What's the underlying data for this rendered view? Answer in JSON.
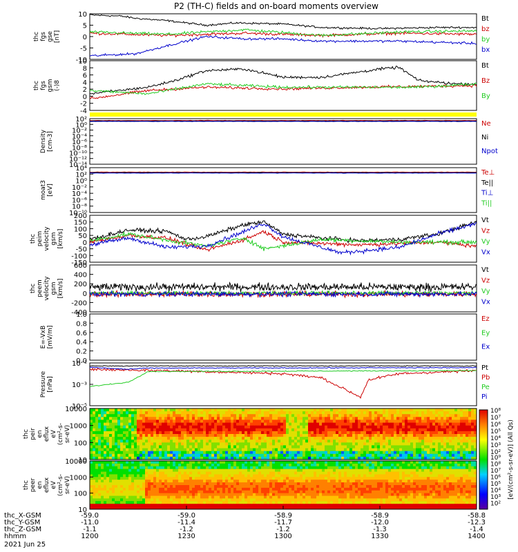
{
  "title": "P2 (TH-C) fields and on-board moments overview",
  "colors": {
    "black": "#000000",
    "red": "#cc0000",
    "green": "#22cc22",
    "blue": "#0000cc",
    "yellow": "#ffff00"
  },
  "chart_data": [
    {
      "type": "line",
      "id": "fgs",
      "ylabel": [
        "thc",
        "fgs",
        "gse",
        "[nT]"
      ],
      "ylim": [
        -10,
        10
      ],
      "ticks": [
        "10",
        "5",
        "0",
        "-5",
        "-10"
      ],
      "legend": [
        {
          "name": "Bt",
          "color": "black"
        },
        {
          "name": "bz",
          "color": "red"
        },
        {
          "name": "by",
          "color": "green"
        },
        {
          "name": "bx",
          "color": "blue"
        }
      ]
    },
    {
      "type": "line",
      "id": "fgsgsm",
      "ylabel": [
        "thc",
        "fgs",
        "gsm",
        "(-)8"
      ],
      "ylim": [
        -5,
        10
      ],
      "ticks": [
        "10",
        "8",
        "6",
        "4",
        "2",
        "0",
        "-2",
        "-4"
      ],
      "legend": [
        {
          "name": "Bt",
          "color": "black"
        },
        {
          "name": "Bz",
          "color": "red"
        },
        {
          "name": "By",
          "color": "green"
        }
      ]
    },
    {
      "type": "line",
      "id": "density",
      "ylabel": [
        "Density",
        "[cm-3]"
      ],
      "ylim": [
        1e-14,
        100
      ],
      "log": true,
      "ticks": [
        "10²",
        "10⁰",
        "10⁻²",
        "10⁻⁴",
        "10⁻⁶",
        "10⁻⁸",
        "10⁻¹⁰",
        "10⁻¹²",
        "10⁻¹⁴"
      ],
      "legend": [
        {
          "name": "Ne",
          "color": "red"
        },
        {
          "name": "Ni",
          "color": "black"
        },
        {
          "name": "Npot",
          "color": "blue"
        }
      ]
    },
    {
      "type": "line",
      "id": "temp",
      "ylabel": [
        "moat3",
        "[eV]"
      ],
      "ylim": [
        1e-10,
        10000
      ],
      "log": true,
      "ticks": [
        "10⁴",
        "10²",
        "10⁰",
        "10⁻²",
        "10⁻⁴",
        "10⁻⁶",
        "10⁻⁸",
        "10⁻¹⁰"
      ],
      "legend": [
        {
          "name": "Te⊥",
          "color": "red"
        },
        {
          "name": "Te||",
          "color": "black"
        },
        {
          "name": "Ti⊥",
          "color": "blue"
        },
        {
          "name": "Ti||",
          "color": "green"
        }
      ]
    },
    {
      "type": "line",
      "id": "peim",
      "ylabel": [
        "thc",
        "peim",
        "velocity",
        "gsm",
        "[km/s]"
      ],
      "ylim": [
        -150,
        200
      ],
      "ticks": [
        "200",
        "150",
        "100",
        "50",
        "0",
        "-50",
        "-100",
        "-150"
      ],
      "legend": [
        {
          "name": "Vt",
          "color": "black"
        },
        {
          "name": "Vz",
          "color": "red"
        },
        {
          "name": "Vy",
          "color": "green"
        },
        {
          "name": "Vx",
          "color": "blue"
        }
      ]
    },
    {
      "type": "line",
      "id": "peem",
      "ylabel": [
        "thc",
        "peem",
        "velocity",
        "gsm",
        "[km/s]"
      ],
      "ylim": [
        -400,
        600
      ],
      "ticks": [
        "600",
        "400",
        "200",
        "0",
        "-200",
        "-400"
      ],
      "legend": [
        {
          "name": "Vt",
          "color": "black"
        },
        {
          "name": "Vz",
          "color": "red"
        },
        {
          "name": "Vy",
          "color": "green"
        },
        {
          "name": "Vx",
          "color": "blue"
        }
      ]
    },
    {
      "type": "line",
      "id": "efield",
      "ylabel": [
        "E=-VxB",
        "[mV/m]"
      ],
      "ylim": [
        0,
        1
      ],
      "ticks": [
        "1.0",
        "0.8",
        "0.6",
        "0.4",
        "0.2",
        "0.0"
      ],
      "legend": [
        {
          "name": "Ez",
          "color": "red"
        },
        {
          "name": "Ey",
          "color": "green"
        },
        {
          "name": "Ex",
          "color": "blue"
        }
      ]
    },
    {
      "type": "line",
      "id": "pressure",
      "ylabel": [
        "Pressure",
        "[nPa]"
      ],
      "ylim": [
        1e-06,
        0.1
      ],
      "log": true,
      "ticks": [
        "10⁻¹",
        "10⁻³",
        "10⁻⁵"
      ],
      "legend": [
        {
          "name": "Pt",
          "color": "black"
        },
        {
          "name": "Pb",
          "color": "red"
        },
        {
          "name": "Pe",
          "color": "green"
        },
        {
          "name": "Pi",
          "color": "blue"
        }
      ]
    },
    {
      "type": "heatmap",
      "id": "peir",
      "ylabel": [
        "thc",
        "peir",
        "en",
        "eflux",
        "eV",
        "(cm²-s-",
        "sr-eV)"
      ],
      "ticks": [
        "10000",
        "1000",
        "100",
        "10"
      ]
    },
    {
      "type": "heatmap",
      "id": "peer",
      "ylabel": [
        "thc",
        "peer",
        "en",
        "eflux",
        "eV",
        "(cm²-s-",
        "sr-eV)"
      ],
      "ticks": [
        "10000",
        "1000",
        "100",
        "10"
      ]
    }
  ],
  "colorbar": {
    "label": "[eV/(cm²-s-sr-eV)] (All Qs)",
    "top_ticks": [
      "10⁸",
      "10⁷",
      "10⁶",
      "10⁵",
      "10⁴",
      "10³",
      "10²"
    ],
    "bottom_ticks": [
      "10⁹",
      "10⁸",
      "10⁷",
      "10⁶",
      "10⁵",
      "10⁴",
      "10³",
      "10²"
    ]
  },
  "x_axis": {
    "rows": [
      {
        "label": "thc_X-GSM",
        "values": [
          "-59.0",
          "-59.0",
          "-58.9",
          "-58.9",
          "-58.8"
        ]
      },
      {
        "label": "thc_Y-GSM",
        "values": [
          "-11.0",
          "-11.4",
          "-11.7",
          "-12.0",
          "-12.3"
        ]
      },
      {
        "label": "thc_Z-GSM",
        "values": [
          "-1.1",
          "-1.2",
          "-1.2",
          "-1.3",
          "-1.4"
        ]
      },
      {
        "label": "hhmm",
        "values": [
          "1200",
          "1230",
          "1300",
          "1330",
          "1400"
        ]
      }
    ],
    "date": "2021 Jun 25"
  }
}
